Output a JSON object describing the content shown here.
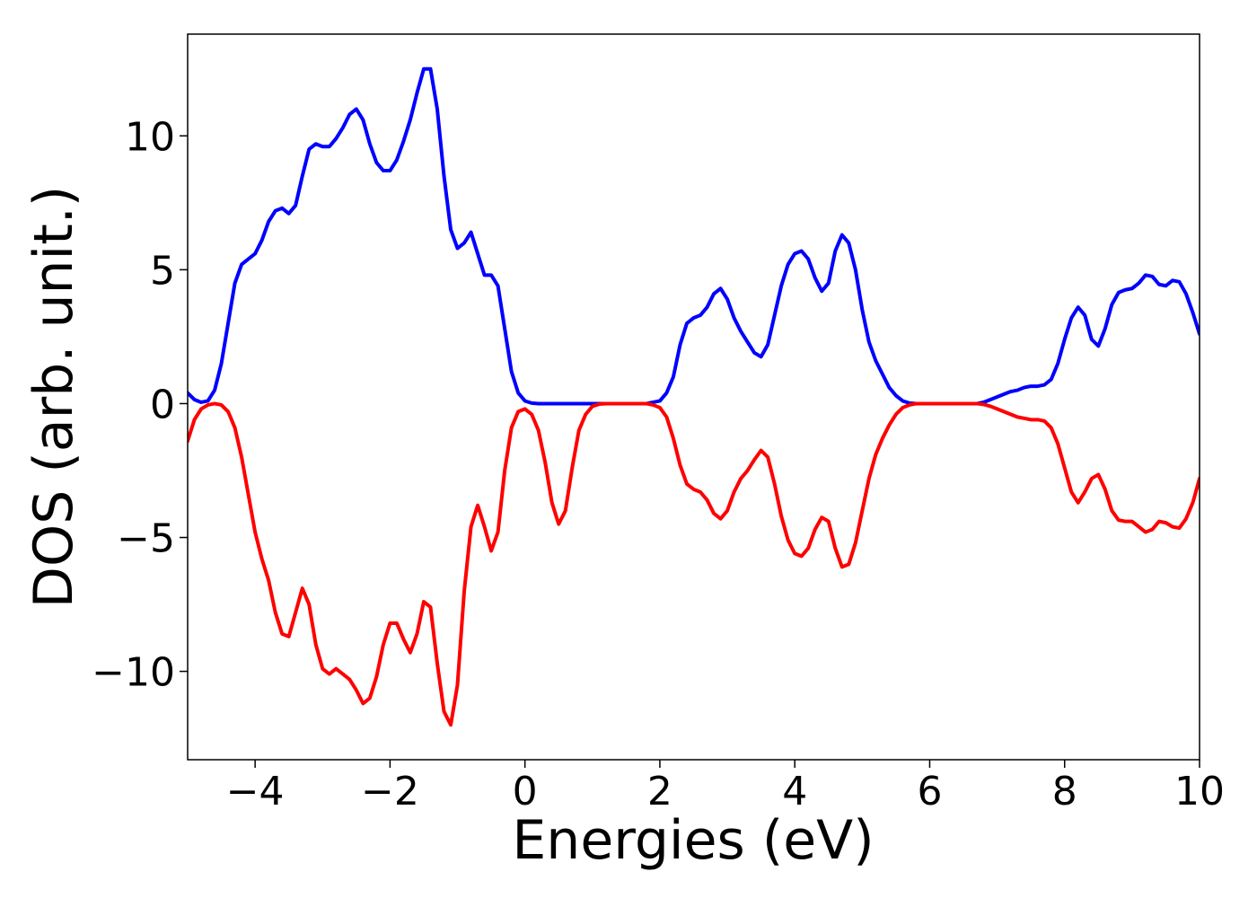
{
  "chart_data": {
    "type": "line",
    "xlabel": "Energies (eV)",
    "ylabel": "DOS (arb. unit.)",
    "x": [
      -5,
      -4.9,
      -4.8,
      -4.7,
      -4.6,
      -4.5,
      -4.4,
      -4.3,
      -4.2,
      -4.1,
      -4,
      -3.9,
      -3.8,
      -3.7,
      -3.6,
      -3.5,
      -3.4,
      -3.3,
      -3.2,
      -3.1,
      -3,
      -2.9,
      -2.8,
      -2.7,
      -2.6,
      -2.5,
      -2.4,
      -2.3,
      -2.2,
      -2.1,
      -2,
      -1.9,
      -1.8,
      -1.7,
      -1.6,
      -1.5,
      -1.4,
      -1.3,
      -1.2,
      -1.1,
      -1,
      -0.9,
      -0.8,
      -0.7,
      -0.6,
      -0.5,
      -0.4,
      -0.3,
      -0.2,
      -0.1,
      0,
      0.1,
      0.2,
      0.3,
      0.4,
      0.5,
      0.6,
      0.7,
      0.8,
      0.9,
      1,
      1.1,
      1.2,
      1.3,
      1.4,
      1.5,
      1.6,
      1.7,
      1.8,
      1.9,
      2,
      2.1,
      2.2,
      2.3,
      2.4,
      2.5,
      2.6,
      2.7,
      2.8,
      2.9,
      3,
      3.1,
      3.2,
      3.3,
      3.4,
      3.5,
      3.6,
      3.7,
      3.8,
      3.9,
      4,
      4.1,
      4.2,
      4.3,
      4.4,
      4.5,
      4.6,
      4.7,
      4.8,
      4.9,
      5,
      5.1,
      5.2,
      5.3,
      5.4,
      5.5,
      5.6,
      5.7,
      5.8,
      5.9,
      6,
      6.1,
      6.2,
      6.3,
      6.4,
      6.5,
      6.6,
      6.7,
      6.8,
      6.9,
      7,
      7.1,
      7.2,
      7.3,
      7.4,
      7.5,
      7.6,
      7.7,
      7.8,
      7.9,
      8,
      8.1,
      8.2,
      8.3,
      8.4,
      8.5,
      8.6,
      8.7,
      8.8,
      8.9,
      9,
      9.1,
      9.2,
      9.3,
      9.4,
      9.5,
      9.6,
      9.7,
      9.8,
      9.9,
      10
    ],
    "series": [
      {
        "color": "#0000ff",
        "values": [
          0.4,
          0.15,
          0.05,
          0.1,
          0.5,
          1.5,
          3.0,
          4.5,
          5.2,
          5.4,
          5.6,
          6.1,
          6.8,
          7.2,
          7.3,
          7.1,
          7.4,
          8.5,
          9.5,
          9.7,
          9.6,
          9.6,
          9.9,
          10.3,
          10.8,
          11.0,
          10.6,
          9.7,
          9.0,
          8.7,
          8.7,
          9.1,
          9.8,
          10.6,
          11.6,
          12.5,
          12.5,
          11.0,
          8.5,
          6.5,
          5.8,
          6.0,
          6.4,
          5.6,
          4.8,
          4.8,
          4.4,
          2.8,
          1.2,
          0.4,
          0.1,
          0.02,
          0,
          0,
          0,
          0,
          0,
          0,
          0,
          0,
          0,
          0,
          0,
          0,
          0,
          0,
          0,
          0,
          0,
          0.05,
          0.1,
          0.4,
          1.0,
          2.2,
          3.0,
          3.2,
          3.3,
          3.6,
          4.1,
          4.3,
          3.9,
          3.2,
          2.7,
          2.3,
          1.9,
          1.75,
          2.2,
          3.3,
          4.4,
          5.2,
          5.6,
          5.7,
          5.4,
          4.7,
          4.2,
          4.5,
          5.7,
          6.3,
          6.0,
          5.0,
          3.5,
          2.3,
          1.6,
          1.1,
          0.6,
          0.3,
          0.1,
          0.02,
          0,
          0,
          0,
          0,
          0,
          0,
          0,
          0,
          0,
          0,
          0.05,
          0.15,
          0.25,
          0.35,
          0.45,
          0.5,
          0.6,
          0.65,
          0.65,
          0.7,
          0.9,
          1.5,
          2.4,
          3.2,
          3.6,
          3.3,
          2.4,
          2.15,
          2.8,
          3.7,
          4.15,
          4.25,
          4.3,
          4.5,
          4.8,
          4.75,
          4.45,
          4.4,
          4.6,
          4.55,
          4.1,
          3.4,
          2.6
        ]
      },
      {
        "color": "#ff0000",
        "values": [
          -1.4,
          -0.6,
          -0.2,
          -0.05,
          0,
          -0.05,
          -0.3,
          -0.9,
          -2.0,
          -3.4,
          -4.8,
          -5.8,
          -6.6,
          -7.8,
          -8.6,
          -8.7,
          -7.8,
          -6.9,
          -7.5,
          -9.0,
          -9.9,
          -10.1,
          -9.9,
          -10.1,
          -10.3,
          -10.7,
          -11.2,
          -11.0,
          -10.2,
          -9.0,
          -8.2,
          -8.2,
          -8.8,
          -9.3,
          -8.6,
          -7.4,
          -7.6,
          -9.7,
          -11.5,
          -12.0,
          -10.5,
          -7.0,
          -4.6,
          -3.8,
          -4.6,
          -5.5,
          -4.8,
          -2.5,
          -0.9,
          -0.3,
          -0.2,
          -0.4,
          -1.0,
          -2.2,
          -3.7,
          -4.5,
          -4.0,
          -2.4,
          -1.0,
          -0.4,
          -0.1,
          -0.02,
          0,
          0,
          0,
          0,
          0,
          0,
          0,
          -0.05,
          -0.15,
          -0.5,
          -1.3,
          -2.3,
          -3.0,
          -3.2,
          -3.3,
          -3.6,
          -4.1,
          -4.3,
          -4.0,
          -3.3,
          -2.8,
          -2.5,
          -2.1,
          -1.75,
          -2.0,
          -3.0,
          -4.2,
          -5.1,
          -5.6,
          -5.7,
          -5.4,
          -4.7,
          -4.25,
          -4.4,
          -5.4,
          -6.1,
          -6.0,
          -5.2,
          -4.0,
          -2.8,
          -1.9,
          -1.3,
          -0.8,
          -0.4,
          -0.15,
          -0.05,
          0,
          0,
          0,
          0,
          0,
          0,
          0,
          0,
          0,
          0,
          -0.03,
          -0.1,
          -0.2,
          -0.3,
          -0.4,
          -0.5,
          -0.55,
          -0.6,
          -0.6,
          -0.65,
          -0.9,
          -1.5,
          -2.4,
          -3.3,
          -3.7,
          -3.3,
          -2.8,
          -2.65,
          -3.2,
          -4.0,
          -4.35,
          -4.4,
          -4.4,
          -4.6,
          -4.8,
          -4.7,
          -4.4,
          -4.45,
          -4.6,
          -4.65,
          -4.3,
          -3.7,
          -2.8
        ]
      }
    ],
    "xlim": [
      -5,
      10
    ],
    "xticks": [
      {
        "value": -4,
        "label": "−4"
      },
      {
        "value": -2,
        "label": "−2"
      },
      0,
      2,
      4,
      6,
      8,
      10
    ],
    "ylim": [
      -13.3,
      13.8
    ],
    "yticks": [
      {
        "value": -10,
        "label": "−10"
      },
      {
        "value": -5,
        "label": "−5"
      },
      0,
      5,
      10
    ]
  }
}
